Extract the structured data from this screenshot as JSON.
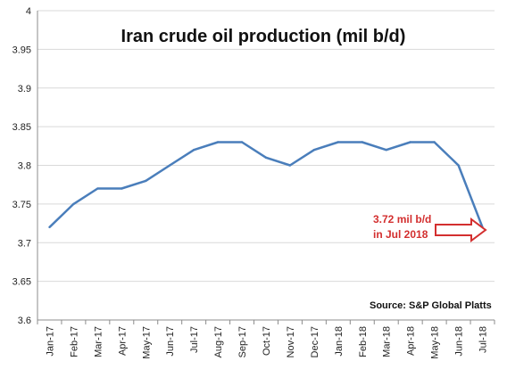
{
  "chart_data": {
    "type": "line",
    "title": "Iran crude oil production (mil b/d)",
    "source": "Source: S&P Global Platts",
    "annotation_line1": "3.72 mil b/d",
    "annotation_line2": "in Jul 2018",
    "categories": [
      "Jan-17",
      "Feb-17",
      "Mar-17",
      "Apr-17",
      "May-17",
      "Jun-17",
      "Jul-17",
      "Aug-17",
      "Sep-17",
      "Oct-17",
      "Nov-17",
      "Dec-17",
      "Jan-18",
      "Feb-18",
      "Mar-18",
      "Apr-18",
      "May-18",
      "Jun-18",
      "Jul-18"
    ],
    "series": [
      {
        "values": [
          3.72,
          3.75,
          3.77,
          3.77,
          3.78,
          3.8,
          3.82,
          3.83,
          3.83,
          3.81,
          3.8,
          3.82,
          3.83,
          3.83,
          3.82,
          3.83,
          3.83,
          3.8,
          3.72
        ]
      }
    ],
    "ylim": [
      3.6,
      4.0
    ],
    "yticks": [
      3.6,
      3.65,
      3.7,
      3.75,
      3.8,
      3.85,
      3.9,
      3.95,
      4.0
    ],
    "ytick_labels": [
      "3.6",
      "3.65",
      "3.7",
      "3.75",
      "3.8",
      "3.85",
      "3.9",
      "3.95",
      "4"
    ],
    "grid": true,
    "colors": {
      "line": "#4a7ebb",
      "grid": "#d9d9d9",
      "axis": "#8c8c8c",
      "annotation": "#d32f2f",
      "arrow_fill": "#ffffff"
    }
  }
}
